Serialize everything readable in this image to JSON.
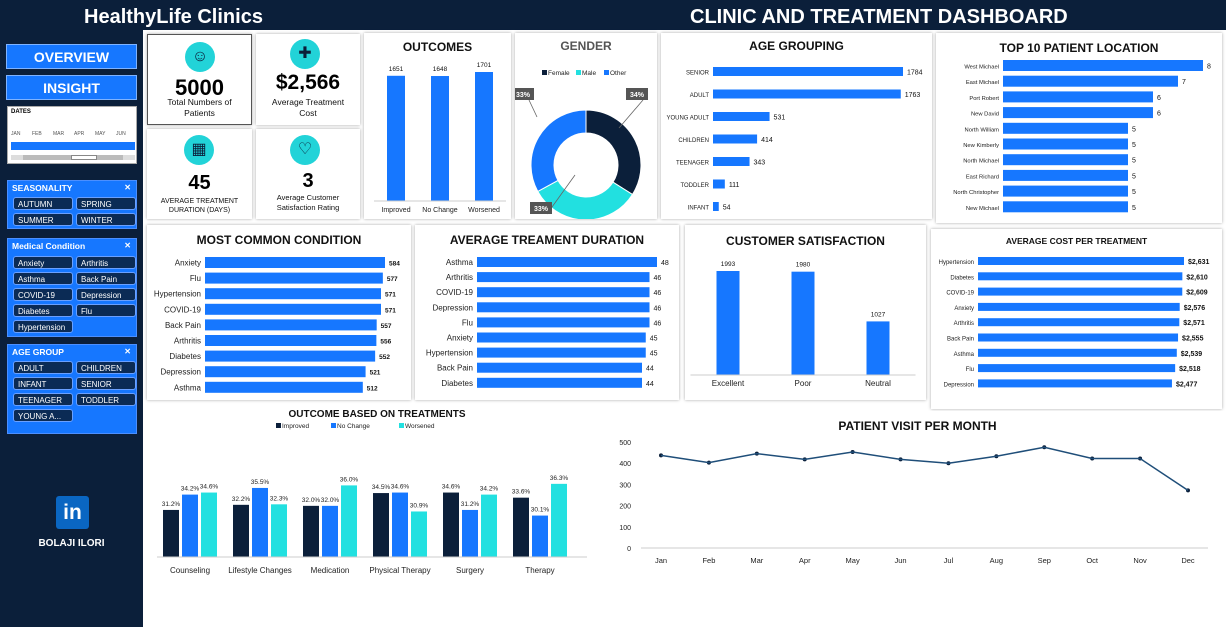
{
  "header": {
    "brand": "HealthyLife Clinics",
    "title": "CLINIC AND TREATMENT DASHBOARD"
  },
  "nav": {
    "overview": "OVERVIEW",
    "insight": "INSIGHT"
  },
  "timeline": {
    "label": "DATES",
    "months": [
      "JAN",
      "FEB",
      "MAR",
      "APR",
      "MAY",
      "JUN"
    ]
  },
  "slicers": {
    "seasonality": {
      "title": "SEASONALITY",
      "items": [
        "AUTUMN",
        "SPRING",
        "SUMMER",
        "WINTER"
      ]
    },
    "condition": {
      "title": "Medical Condition",
      "items": [
        "Anxiety",
        "Arthritis",
        "Asthma",
        "Back Pain",
        "COVID-19",
        "Depression",
        "Diabetes",
        "Flu",
        "Hypertension"
      ]
    },
    "age": {
      "title": "AGE GROUP",
      "items": [
        "ADULT",
        "CHILDREN",
        "INFANT",
        "SENIOR",
        "TEENAGER",
        "TODDLER",
        "YOUNG A..."
      ]
    }
  },
  "author": {
    "icon": "in",
    "name": "BOLAJI ILORI"
  },
  "kpis": {
    "patients": {
      "value": "5000",
      "label": "Total Numbers of Patients"
    },
    "cost": {
      "value": "$2,566",
      "label": "Average Treatment Cost"
    },
    "duration": {
      "value": "45",
      "label": "AVERAGE TREATMENT DURATION (DAYS)"
    },
    "satisfaction": {
      "value": "3",
      "label": "Average Customer Satisfaction Rating"
    }
  },
  "colors": {
    "accent": "#1677ff",
    "cyan": "#22e0e0",
    "navy": "#0b1f3a"
  },
  "chart_data": [
    {
      "id": "outcomes",
      "type": "bar",
      "title": "OUTCOMES",
      "categories": [
        "Improved",
        "No Change",
        "Worsened"
      ],
      "values": [
        1651,
        1648,
        1701
      ]
    },
    {
      "id": "gender",
      "type": "pie",
      "title": "GENDER",
      "categories": [
        "Female",
        "Male",
        "Other"
      ],
      "values": [
        34,
        33,
        33
      ],
      "labels": [
        "34%",
        "33%",
        "33%"
      ]
    },
    {
      "id": "age",
      "type": "bar",
      "title": "AGE GROUPING",
      "categories": [
        "SENIOR",
        "ADULT",
        "YOUNG ADULT",
        "CHILDREN",
        "TEENAGER",
        "TODDLER",
        "INFANT"
      ],
      "values": [
        1784,
        1763,
        531,
        414,
        343,
        111,
        54
      ]
    },
    {
      "id": "location",
      "type": "bar",
      "title": "TOP 10 PATIENT LOCATION",
      "categories": [
        "West Michael",
        "East Michael",
        "Port Robert",
        "New David",
        "North William",
        "New Kimberly",
        "North Michael",
        "East Richard",
        "North Christopher",
        "New Michael"
      ],
      "values": [
        8,
        7,
        6,
        6,
        5,
        5,
        5,
        5,
        5,
        5
      ]
    },
    {
      "id": "condition",
      "type": "bar",
      "title": "MOST COMMON CONDITION",
      "categories": [
        "Anxiety",
        "Flu",
        "Hypertension",
        "COVID-19",
        "Back Pain",
        "Arthritis",
        "Diabetes",
        "Depression",
        "Asthma"
      ],
      "values": [
        584,
        577,
        571,
        571,
        557,
        556,
        552,
        521,
        512
      ]
    },
    {
      "id": "duration",
      "type": "bar",
      "title": "AVERAGE TREAMENT DURATION",
      "categories": [
        "Asthma",
        "Arthritis",
        "COVID-19",
        "Depression",
        "Flu",
        "Anxiety",
        "Hypertension",
        "Back Pain",
        "Diabetes"
      ],
      "values": [
        48,
        46,
        46,
        46,
        46,
        45,
        45,
        44,
        44
      ]
    },
    {
      "id": "satisfaction",
      "type": "bar",
      "title": "CUSTOMER SATISFACTION",
      "categories": [
        "Excellent",
        "Poor",
        "Neutral"
      ],
      "values": [
        1993,
        1980,
        1027
      ]
    },
    {
      "id": "cost",
      "type": "bar",
      "title": "AVERAGE COST PER TREATMENT",
      "categories": [
        "Hypertension",
        "Diabetes",
        "COVID-19",
        "Anxiety",
        "Arthritis",
        "Back Pain",
        "Asthma",
        "Flu",
        "Depression"
      ],
      "values": [
        2631,
        2610,
        2609,
        2576,
        2571,
        2555,
        2539,
        2518,
        2477
      ],
      "labels": [
        "$2,631",
        "$2,610",
        "$2,609",
        "$2,576",
        "$2,571",
        "$2,555",
        "$2,539",
        "$2,518",
        "$2,477"
      ]
    },
    {
      "id": "treatments",
      "type": "bar",
      "title": "OUTCOME BASED ON TREATMENTS",
      "categories": [
        "Counseling",
        "Lifestyle Changes",
        "Medication",
        "Physical Therapy",
        "Surgery",
        "Therapy"
      ],
      "series": [
        {
          "name": "Improved",
          "values": [
            31.2,
            32.2,
            32.0,
            34.5,
            34.6,
            33.6
          ]
        },
        {
          "name": "No Change",
          "values": [
            34.2,
            35.5,
            32.0,
            34.6,
            31.2,
            30.1
          ]
        },
        {
          "name": "Worsened",
          "values": [
            34.6,
            32.3,
            36.0,
            30.9,
            34.2,
            36.3
          ]
        }
      ]
    },
    {
      "id": "visits",
      "type": "line",
      "title": "PATIENT VISIT PER MONTH",
      "categories": [
        "Jan",
        "Feb",
        "Mar",
        "Apr",
        "May",
        "Jun",
        "Jul",
        "Aug",
        "Sep",
        "Oct",
        "Nov",
        "Dec"
      ],
      "values": [
        437,
        403,
        445,
        418,
        453,
        418,
        400,
        433,
        475,
        422,
        422,
        272
      ],
      "ylim": [
        0,
        500
      ],
      "yticks": [
        0,
        100,
        200,
        300,
        400,
        500
      ]
    }
  ]
}
